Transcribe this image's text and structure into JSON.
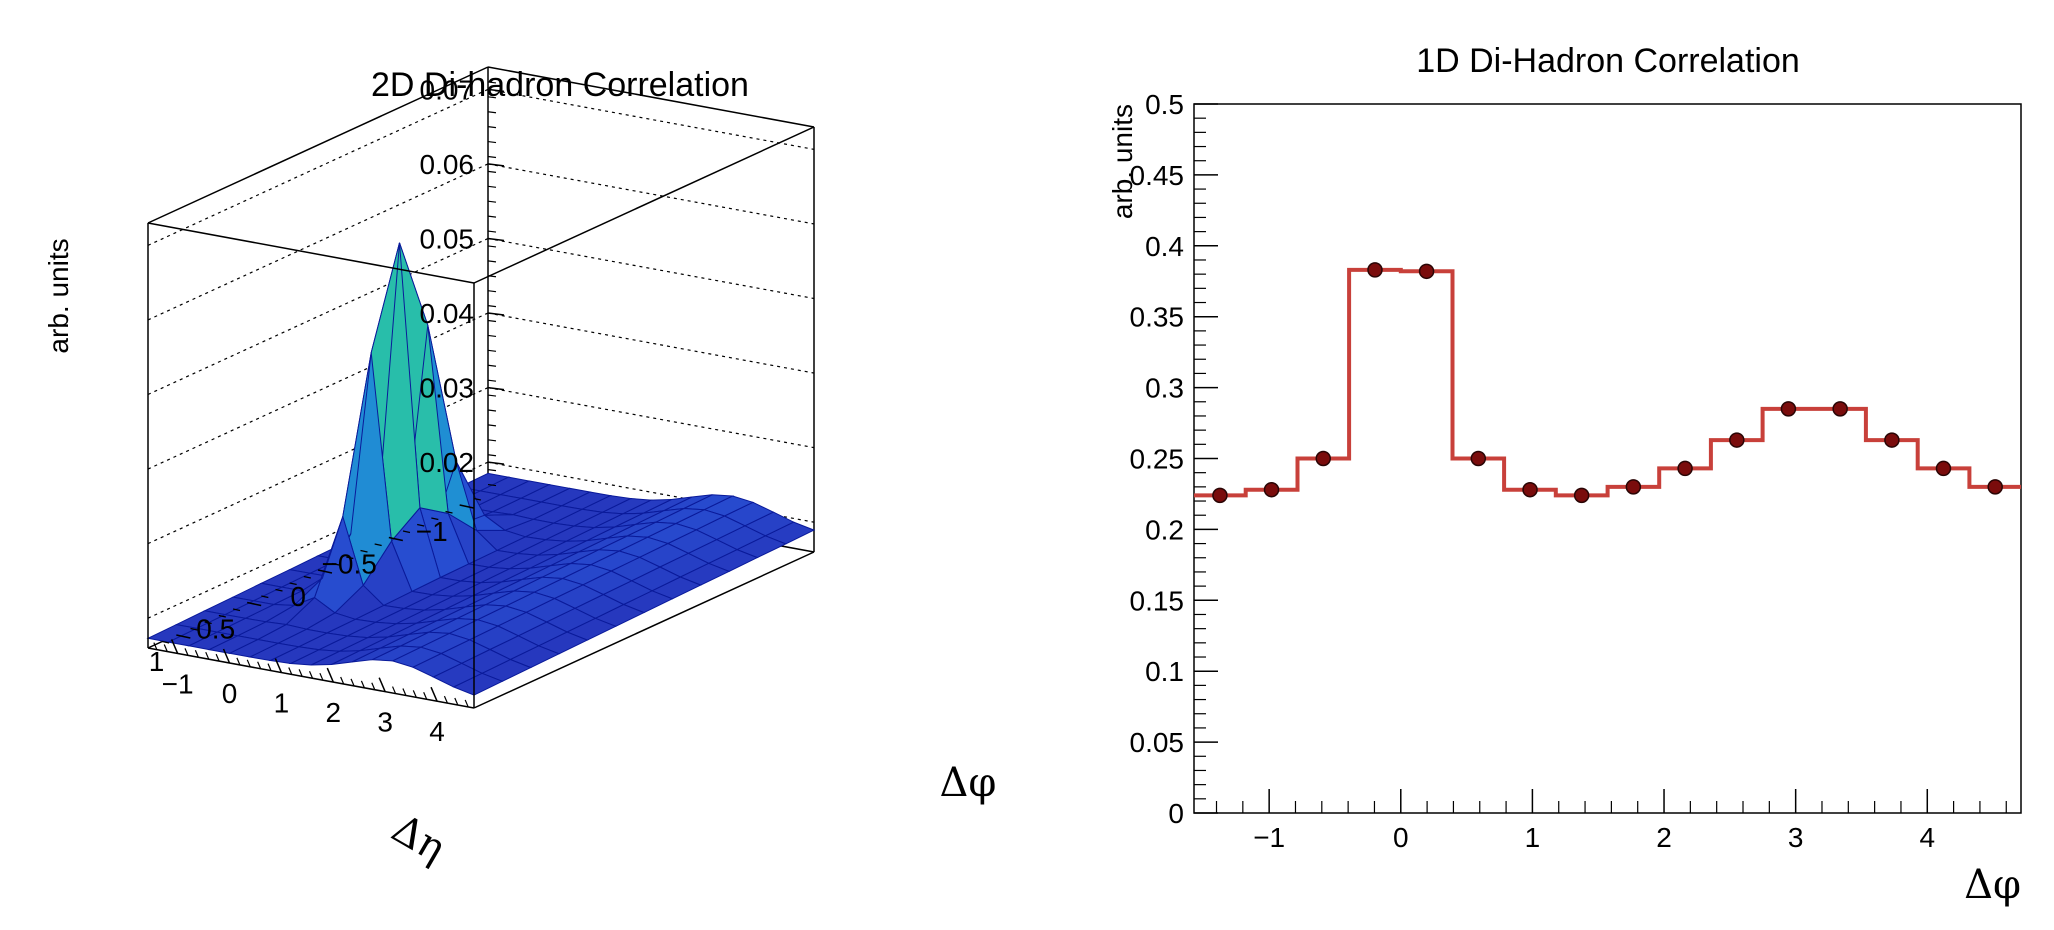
{
  "colors": {
    "hist_line": "#c8403a",
    "marker_fill": "#7a0c0c",
    "marker_stroke": "#2a0505",
    "mesh_line": "#0a1a9a",
    "frame": "#000000"
  },
  "chart_data": [
    {
      "type": "surface",
      "title": "2D Di-hadron Correlation",
      "xlabel": "Δφ",
      "ylabel": "Δη",
      "zlabel": "arb. units",
      "xlim": [
        -1.571,
        4.712
      ],
      "ylim": [
        -1.2,
        1.2
      ],
      "zlim": [
        0.016,
        0.073
      ],
      "x_ticks": [
        "−1",
        "0",
        "1",
        "2",
        "3",
        "4"
      ],
      "y_ticks": [
        "−1",
        "−0.5",
        "0",
        "0.5",
        "1"
      ],
      "z_ticks": [
        "0.02",
        "0.03",
        "0.04",
        "0.05",
        "0.06",
        "0.07"
      ],
      "grid": true,
      "colormap": "viridis-like (blue to yellow)",
      "peak": {
        "x": 0.0,
        "y": 0.0,
        "z": 0.0625
      },
      "baseline": 0.0185,
      "away_side_ridge": {
        "x": 3.14,
        "z": 0.0215
      }
    },
    {
      "type": "step",
      "title": "1D Di-Hadron Correlation",
      "xlabel": "Δφ",
      "ylabel": "arb. units",
      "xlim": [
        -1.571,
        4.712
      ],
      "ylim": [
        0,
        0.5
      ],
      "x_ticks": [
        "−1",
        "0",
        "1",
        "2",
        "3",
        "4"
      ],
      "y_ticks": [
        "0",
        "0.05",
        "0.1",
        "0.15",
        "0.2",
        "0.25",
        "0.3",
        "0.35",
        "0.4",
        "0.45",
        "0.5"
      ],
      "grid": false,
      "bin_edges": [
        -1.571,
        -1.178,
        -0.785,
        -0.393,
        0.0,
        0.393,
        0.785,
        1.178,
        1.571,
        1.963,
        2.356,
        2.749,
        3.142,
        3.534,
        3.927,
        4.32,
        4.712
      ],
      "x": [
        -1.374,
        -0.982,
        -0.589,
        -0.196,
        0.196,
        0.589,
        0.982,
        1.374,
        1.767,
        2.16,
        2.553,
        2.945,
        3.338,
        3.731,
        4.123,
        4.516
      ],
      "values": [
        0.224,
        0.228,
        0.25,
        0.383,
        0.382,
        0.25,
        0.228,
        0.224,
        0.23,
        0.243,
        0.263,
        0.285,
        0.285,
        0.263,
        0.243,
        0.23
      ]
    }
  ]
}
